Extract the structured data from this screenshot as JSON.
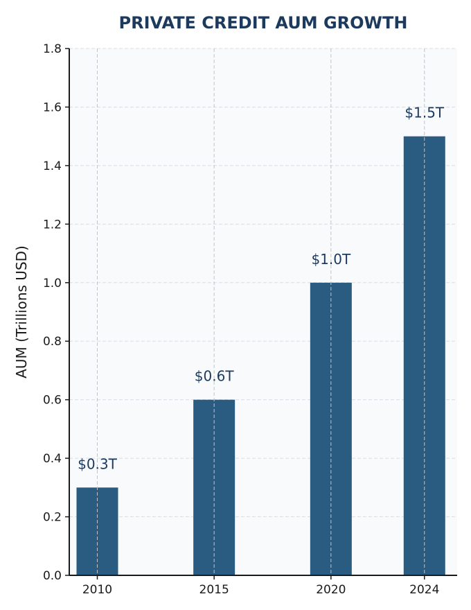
{
  "chart_data": {
    "type": "bar",
    "title": "PRIVATE CREDIT AUM GROWTH",
    "xlabel": "",
    "ylabel": "AUM (Trillions USD)",
    "categories": [
      "2010",
      "2015",
      "2020",
      "2024"
    ],
    "x": [
      2010,
      2015,
      2020,
      2024
    ],
    "values": [
      0.3,
      0.6,
      1.0,
      1.5
    ],
    "data_labels": [
      "$0.3T",
      "$0.6T",
      "$1.0T",
      "$1.5T"
    ],
    "ylim": [
      0,
      1.8
    ],
    "yticks": [
      "0.0",
      "0.2",
      "0.4",
      "0.6",
      "0.8",
      "1.0",
      "1.2",
      "1.4",
      "1.6",
      "1.8"
    ],
    "grid": true,
    "legend": "none",
    "colors": {
      "bar": "#2a5c82",
      "title": "#1c3a5e",
      "data_label": "#1c3a5e",
      "plot_background": "#f8fafc",
      "grid": "#cccccc",
      "axis": "#1a1a1a"
    }
  }
}
